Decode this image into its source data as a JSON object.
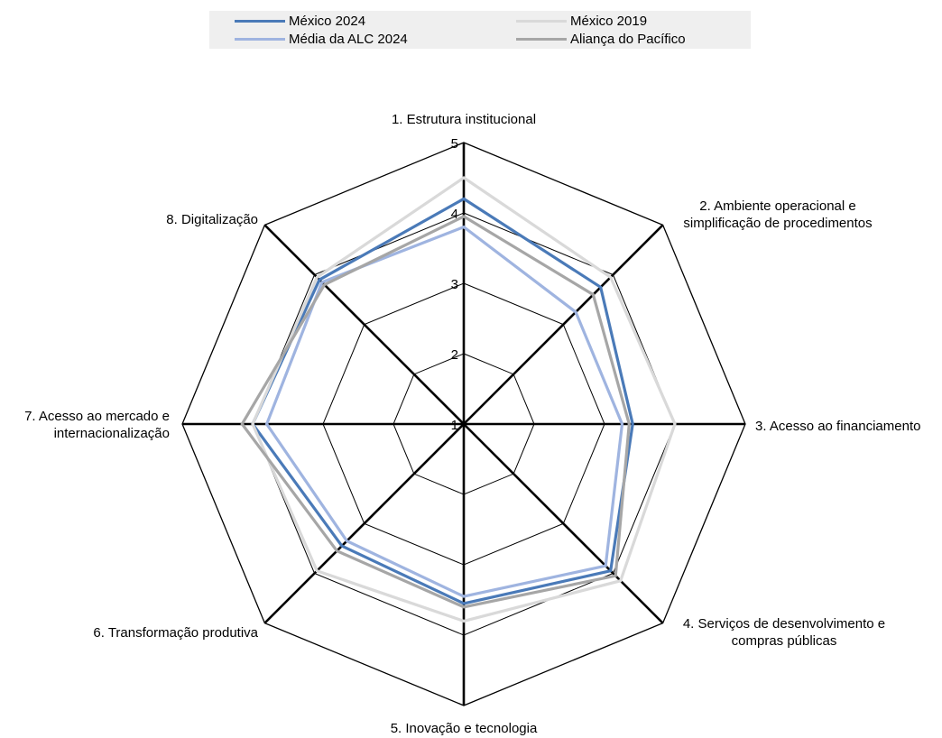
{
  "chart_data": {
    "type": "radar",
    "title": "",
    "categories": [
      "1. Estrutura institucional",
      "2. Ambiente operacional e simplificação de procedimentos",
      "3. Acesso ao financiamento",
      "4. Serviços de desenvolvimento e compras públicas",
      "5. Inovação e tecnologia",
      "6. Transformação produtiva",
      "7. Acesso ao mercado e internacionalização",
      "8. Digitalização"
    ],
    "category_lines": [
      [
        "1. Estrutura institucional"
      ],
      [
        "2. Ambiente operacional e",
        "simplificação de procedimentos"
      ],
      [
        "3. Acesso ao financiamento"
      ],
      [
        "4. Serviços de desenvolvimento e",
        "compras públicas"
      ],
      [
        "5. Inovação e tecnologia"
      ],
      [
        "6. Transformação produtiva"
      ],
      [
        "7. Acesso ao mercado e",
        "internacionalização"
      ],
      [
        "8. Digitalização"
      ]
    ],
    "rlim": [
      1,
      5
    ],
    "ticks": [
      "1",
      "2",
      "3",
      "4",
      "5"
    ],
    "grid": true,
    "legend_position": "top",
    "series": [
      {
        "name": "México 2024",
        "color": "#4a7ab8",
        "values": [
          4.2,
          3.75,
          3.4,
          3.95,
          3.55,
          3.45,
          4.0,
          3.9
        ]
      },
      {
        "name": "México 2019",
        "color": "#d9d9d9",
        "values": [
          4.5,
          3.95,
          4.0,
          4.15,
          3.8,
          3.95,
          4.0,
          3.95
        ]
      },
      {
        "name": "Média da ALC 2024",
        "color": "#9fb4e0",
        "values": [
          3.8,
          3.25,
          3.25,
          3.85,
          3.45,
          3.35,
          3.8,
          3.85
        ]
      },
      {
        "name": "Aliança do Pacífico",
        "color": "#a6a6a6",
        "values": [
          3.95,
          3.6,
          3.35,
          4.05,
          3.6,
          3.55,
          4.15,
          3.8
        ]
      }
    ]
  }
}
